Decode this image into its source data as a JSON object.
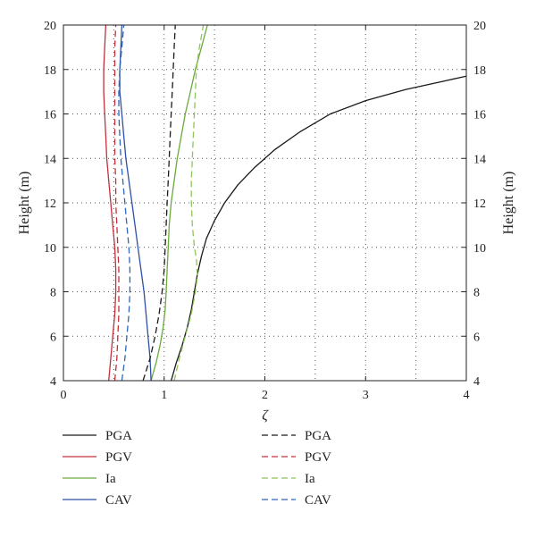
{
  "chart_data": {
    "type": "line",
    "title": "",
    "xlabel": "ζ",
    "ylabel": "Height (m)",
    "ylabel_right": "Height (m)",
    "xlim": [
      0,
      4
    ],
    "ylim": [
      4,
      20
    ],
    "xticks": [
      0,
      1,
      2,
      3,
      4
    ],
    "yticks": [
      4,
      6,
      8,
      10,
      12,
      14,
      16,
      18,
      20
    ],
    "grid": "dotted",
    "legend_placement": "below",
    "series": [
      {
        "name": "PGA",
        "color": "#1a1a1a",
        "dash": "solid",
        "points": [
          [
            1.07,
            4
          ],
          [
            1.12,
            4.8
          ],
          [
            1.18,
            5.6
          ],
          [
            1.23,
            6.4
          ],
          [
            1.27,
            7.2
          ],
          [
            1.3,
            8
          ],
          [
            1.33,
            8.8
          ],
          [
            1.37,
            9.6
          ],
          [
            1.42,
            10.4
          ],
          [
            1.5,
            11.2
          ],
          [
            1.6,
            12
          ],
          [
            1.73,
            12.8
          ],
          [
            1.9,
            13.6
          ],
          [
            2.1,
            14.4
          ],
          [
            2.35,
            15.2
          ],
          [
            2.65,
            16
          ],
          [
            3.0,
            16.6
          ],
          [
            3.4,
            17.1
          ],
          [
            3.8,
            17.5
          ],
          [
            4.0,
            17.7
          ]
        ]
      },
      {
        "name": "PGV",
        "color": "#c0303a",
        "dash": "solid",
        "points": [
          [
            0.45,
            4
          ],
          [
            0.47,
            5
          ],
          [
            0.49,
            6
          ],
          [
            0.51,
            7
          ],
          [
            0.52,
            8
          ],
          [
            0.52,
            9
          ],
          [
            0.51,
            10
          ],
          [
            0.49,
            11
          ],
          [
            0.47,
            12
          ],
          [
            0.45,
            13
          ],
          [
            0.43,
            14
          ],
          [
            0.42,
            15
          ],
          [
            0.41,
            16
          ],
          [
            0.4,
            17
          ],
          [
            0.4,
            18
          ],
          [
            0.41,
            19
          ],
          [
            0.42,
            20
          ]
        ]
      },
      {
        "name": "Ia",
        "color": "#6aaa3a",
        "dash": "solid",
        "points": [
          [
            0.87,
            4
          ],
          [
            0.92,
            4.8
          ],
          [
            0.96,
            5.6
          ],
          [
            0.99,
            6.4
          ],
          [
            1.01,
            7.2
          ],
          [
            1.02,
            8
          ],
          [
            1.03,
            9
          ],
          [
            1.04,
            10
          ],
          [
            1.05,
            11
          ],
          [
            1.07,
            12
          ],
          [
            1.1,
            13
          ],
          [
            1.13,
            14
          ],
          [
            1.17,
            15
          ],
          [
            1.21,
            16
          ],
          [
            1.26,
            17
          ],
          [
            1.31,
            18
          ],
          [
            1.37,
            19
          ],
          [
            1.43,
            20
          ]
        ]
      },
      {
        "name": "CAV",
        "color": "#2f4fa8",
        "dash": "solid",
        "points": [
          [
            0.87,
            4
          ],
          [
            0.86,
            5
          ],
          [
            0.84,
            6
          ],
          [
            0.82,
            7
          ],
          [
            0.8,
            8
          ],
          [
            0.77,
            9
          ],
          [
            0.74,
            10
          ],
          [
            0.71,
            11
          ],
          [
            0.68,
            12
          ],
          [
            0.65,
            13
          ],
          [
            0.62,
            14
          ],
          [
            0.6,
            15
          ],
          [
            0.58,
            16
          ],
          [
            0.56,
            17
          ],
          [
            0.56,
            18
          ],
          [
            0.57,
            19
          ],
          [
            0.58,
            20
          ]
        ]
      },
      {
        "name": "PGA",
        "color": "#1a1a1a",
        "dash": "dashed",
        "points": [
          [
            0.79,
            4
          ],
          [
            0.86,
            5
          ],
          [
            0.91,
            6
          ],
          [
            0.95,
            7
          ],
          [
            0.98,
            8
          ],
          [
            1.0,
            9
          ],
          [
            1.01,
            10
          ],
          [
            1.02,
            11
          ],
          [
            1.03,
            12
          ],
          [
            1.04,
            13
          ],
          [
            1.05,
            14
          ],
          [
            1.06,
            15
          ],
          [
            1.07,
            16
          ],
          [
            1.08,
            17
          ],
          [
            1.09,
            18
          ],
          [
            1.1,
            19
          ],
          [
            1.11,
            20
          ]
        ]
      },
      {
        "name": "PGV",
        "color": "#c0303a",
        "dash": "dashed",
        "points": [
          [
            0.51,
            4
          ],
          [
            0.53,
            5
          ],
          [
            0.54,
            6
          ],
          [
            0.55,
            7
          ],
          [
            0.55,
            8
          ],
          [
            0.55,
            9
          ],
          [
            0.54,
            10
          ],
          [
            0.53,
            11
          ],
          [
            0.52,
            12
          ],
          [
            0.52,
            13
          ],
          [
            0.51,
            14
          ],
          [
            0.51,
            15
          ],
          [
            0.51,
            16
          ],
          [
            0.51,
            17
          ],
          [
            0.51,
            18
          ],
          [
            0.51,
            19
          ],
          [
            0.52,
            20
          ]
        ]
      },
      {
        "name": "Ia",
        "color": "#8ec45a",
        "dash": "dashed",
        "points": [
          [
            1.1,
            4
          ],
          [
            1.15,
            5
          ],
          [
            1.21,
            6
          ],
          [
            1.27,
            7
          ],
          [
            1.31,
            8
          ],
          [
            1.33,
            8.7
          ],
          [
            1.32,
            9.5
          ],
          [
            1.3,
            10
          ],
          [
            1.28,
            11
          ],
          [
            1.27,
            12
          ],
          [
            1.27,
            13
          ],
          [
            1.28,
            14
          ],
          [
            1.29,
            15
          ],
          [
            1.3,
            16
          ],
          [
            1.31,
            17
          ],
          [
            1.32,
            18
          ],
          [
            1.35,
            19
          ],
          [
            1.39,
            20
          ]
        ]
      },
      {
        "name": "CAV",
        "color": "#2f64b8",
        "dash": "dashed",
        "points": [
          [
            0.58,
            4
          ],
          [
            0.61,
            5
          ],
          [
            0.63,
            6
          ],
          [
            0.65,
            7
          ],
          [
            0.66,
            8
          ],
          [
            0.66,
            9
          ],
          [
            0.65,
            10
          ],
          [
            0.63,
            11
          ],
          [
            0.61,
            12
          ],
          [
            0.59,
            13
          ],
          [
            0.57,
            14
          ],
          [
            0.56,
            15
          ],
          [
            0.55,
            16
          ],
          [
            0.55,
            17
          ],
          [
            0.56,
            18
          ],
          [
            0.58,
            19
          ],
          [
            0.6,
            20
          ]
        ]
      }
    ]
  }
}
